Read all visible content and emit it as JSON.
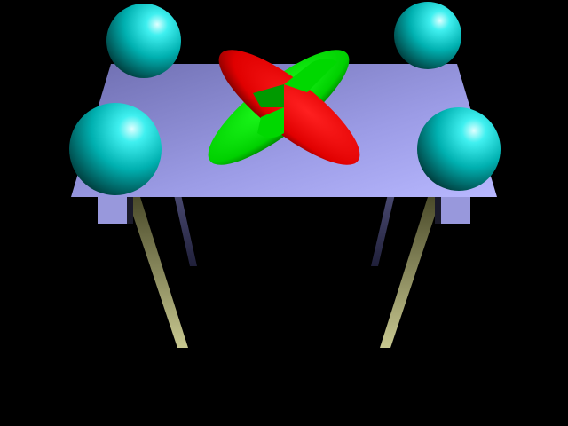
{
  "scene": {
    "description_visible_text": [],
    "colors": {
      "background": "#000000",
      "table_top_light": "#b8b8ff",
      "table_top_dark": "#6e6eb0",
      "table_side": "#9a9ad8",
      "leg_front_light": "#c8c890",
      "leg_front_dark": "#4a4a2a",
      "leg_back_light": "#8080b8",
      "leg_back_dark": "#20203a",
      "sphere_highlight": "#e0ffff",
      "sphere_mid": "#00c8c8",
      "sphere_dark": "#003a3a",
      "ellipsoid_red": "#ff0000",
      "ellipsoid_red_dark": "#500000",
      "ellipsoid_green": "#00e000",
      "ellipsoid_green_dark": "#004000"
    },
    "objects": {
      "spheres_count": 4,
      "ellipsoids_count": 2,
      "table_legs_count": 4
    }
  }
}
